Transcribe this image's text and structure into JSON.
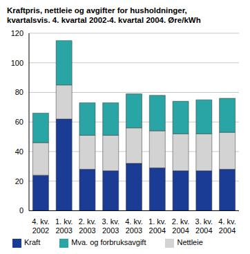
{
  "chart_data": {
    "type": "bar",
    "title": "Kraftpris, nettleie og avgifter for husholdninger, kvartalsvis. 4. kvartal 2002-4. kvartal 2004. Øre/kWh",
    "categories": [
      "4. kv. 2002",
      "1. kv. 2003",
      "2. kv. 2003",
      "3. kv. 2003",
      "4. kv. 2003",
      "1. kv. 2004",
      "2. kv. 2004",
      "3. kv. 2004",
      "4. kv. 2004"
    ],
    "series": [
      {
        "name": "Kraft",
        "color": "#1b3c95",
        "values": [
          24,
          62,
          28,
          27,
          32,
          29,
          27,
          27,
          28
        ]
      },
      {
        "name": "Nettleie",
        "color": "#d3d3d3",
        "values": [
          22,
          23,
          23,
          24,
          24,
          25,
          25,
          25,
          25
        ]
      },
      {
        "name": "Mva. og forbruksavgift",
        "color": "#2aa5a5",
        "values": [
          20,
          30,
          22,
          22,
          23,
          24,
          22,
          23,
          23
        ]
      }
    ],
    "ylim": [
      0,
      120
    ],
    "yticks": [
      0,
      20,
      40,
      60,
      80,
      100,
      120
    ],
    "grid": true,
    "stacked": true,
    "legend": "bottom"
  }
}
